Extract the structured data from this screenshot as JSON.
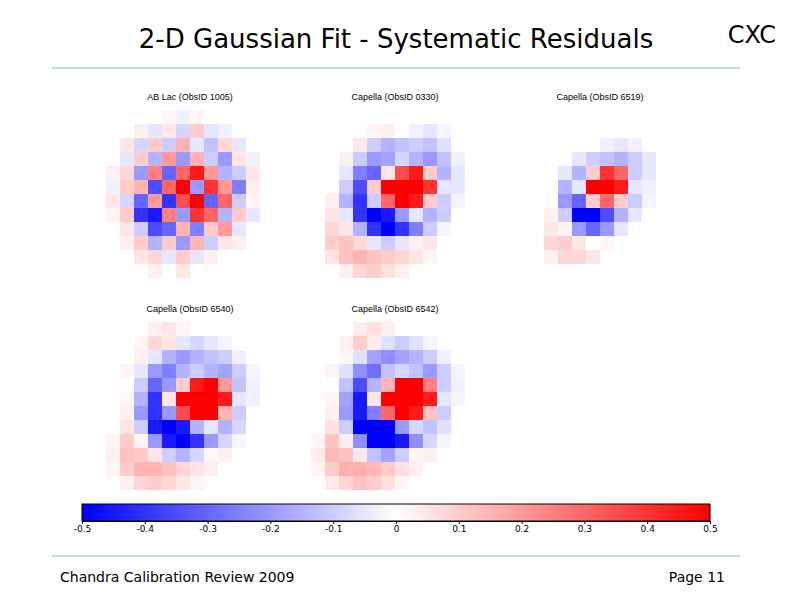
{
  "header": {
    "title": "2-D Gaussian Fit - Systematic Residuals",
    "org": "CXC"
  },
  "footer": {
    "left": "Chandra Calibration Review 2009",
    "right": "Page 11"
  },
  "colorbar": {
    "range": [
      -0.5,
      0.5
    ],
    "ticks": [
      -0.5,
      -0.4,
      -0.3,
      -0.2,
      -0.1,
      0,
      0.1,
      0.2,
      0.3,
      0.4,
      0.5
    ]
  },
  "chart_data": [
    {
      "type": "heatmap",
      "title": "AB Lac (ObsID 1005)",
      "cells": [
        [
          0,
          0,
          0,
          0,
          0.02,
          -0.03,
          0.02,
          0,
          0,
          0,
          0,
          0
        ],
        [
          0,
          0,
          0.03,
          -0.05,
          0.05,
          -0.08,
          0.1,
          -0.05,
          -0.03,
          0,
          0,
          0
        ],
        [
          0,
          0.05,
          -0.08,
          0.1,
          -0.1,
          0.15,
          -0.05,
          -0.12,
          0.08,
          -0.05,
          0,
          0
        ],
        [
          0,
          -0.05,
          0.1,
          -0.15,
          0.2,
          -0.2,
          0.15,
          -0.1,
          -0.2,
          0.05,
          -0.03,
          0
        ],
        [
          0.03,
          0.08,
          -0.2,
          0.25,
          -0.3,
          0.3,
          0.45,
          0.2,
          -0.15,
          -0.1,
          0.05,
          0
        ],
        [
          -0.03,
          0.1,
          0.15,
          -0.35,
          0.3,
          0.5,
          -0.2,
          0.4,
          0.2,
          -0.25,
          0.03,
          0
        ],
        [
          0.05,
          -0.08,
          -0.3,
          0.2,
          -0.4,
          0.35,
          0.5,
          -0.3,
          0.3,
          -0.1,
          0.02,
          0
        ],
        [
          0.02,
          0.1,
          -0.4,
          -0.45,
          0.25,
          -0.2,
          0.4,
          0.3,
          -0.15,
          0.1,
          -0.05,
          0
        ],
        [
          0,
          0.05,
          -0.1,
          -0.35,
          -0.3,
          0.15,
          -0.25,
          0.1,
          0.2,
          -0.05,
          0,
          0
        ],
        [
          0,
          0.03,
          0.1,
          -0.15,
          0.1,
          -0.2,
          0.15,
          -0.1,
          0.05,
          0.03,
          0,
          0
        ],
        [
          0,
          0,
          0.05,
          0.08,
          -0.05,
          0.1,
          -0.05,
          0.03,
          0,
          0,
          0,
          0
        ],
        [
          0,
          0,
          0,
          0.03,
          0,
          0.05,
          0,
          0,
          0,
          0,
          0,
          0
        ]
      ]
    },
    {
      "type": "heatmap",
      "title": "Capella (ObsID 0330)",
      "cells": [
        [
          0,
          0,
          0,
          0,
          0,
          0,
          0,
          0,
          0,
          0,
          0,
          0
        ],
        [
          0,
          0,
          0,
          0,
          0.02,
          0.03,
          0,
          -0.03,
          -0.05,
          -0.02,
          0,
          0
        ],
        [
          0,
          0,
          0,
          0.05,
          -0.1,
          -0.15,
          -0.12,
          -0.1,
          -0.12,
          -0.06,
          0,
          0
        ],
        [
          0,
          0,
          0.03,
          -0.1,
          -0.2,
          -0.18,
          -0.08,
          -0.15,
          -0.2,
          -0.12,
          -0.03,
          0
        ],
        [
          0,
          0,
          -0.05,
          -0.25,
          -0.3,
          0.05,
          0.35,
          0.45,
          0.1,
          -0.15,
          -0.05,
          0
        ],
        [
          0,
          0,
          -0.1,
          -0.35,
          0.1,
          0.5,
          0.5,
          0.5,
          0.4,
          -0.05,
          -0.05,
          0
        ],
        [
          0,
          0.03,
          -0.15,
          -0.4,
          -0.1,
          0.3,
          0.5,
          0.45,
          0.1,
          -0.1,
          -0.02,
          0
        ],
        [
          0,
          0.05,
          -0.05,
          -0.4,
          -0.5,
          -0.45,
          -0.2,
          -0.05,
          -0.15,
          -0.1,
          0,
          0
        ],
        [
          0,
          0.08,
          0.05,
          -0.15,
          -0.4,
          -0.5,
          -0.4,
          -0.25,
          -0.1,
          -0.02,
          0,
          0
        ],
        [
          0,
          0.1,
          0.12,
          0.08,
          -0.05,
          -0.1,
          -0.05,
          0.03,
          0.05,
          0,
          0,
          0
        ],
        [
          0,
          0.05,
          0.12,
          0.15,
          0.12,
          0.1,
          0.08,
          0.05,
          0.02,
          0,
          0,
          0
        ],
        [
          0,
          0,
          0.03,
          0.08,
          0.1,
          0.06,
          0.03,
          0,
          0,
          0,
          0,
          0
        ]
      ]
    },
    {
      "type": "heatmap",
      "title": "Capella (ObsID 6519)",
      "cells": [
        [
          0,
          0,
          0,
          0,
          0,
          0,
          0,
          0,
          0,
          0,
          0,
          0
        ],
        [
          0,
          0,
          0,
          0,
          0,
          0,
          0,
          0,
          0,
          0,
          0,
          0
        ],
        [
          0,
          0,
          0,
          0,
          0,
          0,
          -0.03,
          -0.05,
          -0.03,
          0,
          0,
          0
        ],
        [
          0,
          0,
          0,
          0,
          -0.05,
          -0.1,
          -0.12,
          -0.15,
          -0.1,
          -0.05,
          0,
          0
        ],
        [
          0,
          0,
          0,
          -0.05,
          -0.15,
          0.1,
          0.4,
          0.3,
          -0.1,
          -0.05,
          0,
          0
        ],
        [
          0,
          0,
          0,
          -0.15,
          -0.05,
          0.5,
          0.5,
          0.45,
          -0.05,
          -0.03,
          0,
          0
        ],
        [
          0,
          0,
          0,
          -0.2,
          -0.3,
          0.1,
          0.3,
          0.1,
          -0.1,
          -0.02,
          0,
          0
        ],
        [
          0,
          0,
          0.03,
          -0.1,
          -0.5,
          -0.5,
          -0.35,
          -0.15,
          -0.05,
          0,
          0,
          0
        ],
        [
          0,
          0,
          0.05,
          0.02,
          -0.2,
          -0.3,
          -0.2,
          -0.05,
          0,
          0,
          0,
          0
        ],
        [
          0,
          0,
          0.08,
          0.1,
          0.05,
          0,
          0.02,
          0,
          0,
          0,
          0,
          0
        ],
        [
          0,
          0,
          0.03,
          0.08,
          0.08,
          0.05,
          0,
          0,
          0,
          0,
          0,
          0
        ],
        [
          0,
          0,
          0,
          0,
          0,
          0,
          0,
          0,
          0,
          0,
          0,
          0
        ]
      ]
    },
    {
      "type": "heatmap",
      "title": "Capella (ObsID 6540)",
      "cells": [
        [
          0,
          0,
          0,
          0.03,
          0.05,
          0.02,
          0,
          0,
          0,
          0,
          0,
          0
        ],
        [
          0,
          0,
          0.02,
          0.08,
          0.05,
          -0.05,
          -0.08,
          -0.05,
          -0.02,
          0,
          0,
          0
        ],
        [
          0,
          0,
          0.03,
          -0.05,
          -0.15,
          -0.2,
          -0.15,
          -0.12,
          -0.1,
          -0.03,
          0,
          0
        ],
        [
          0,
          0.02,
          -0.05,
          -0.2,
          -0.25,
          -0.15,
          -0.1,
          -0.15,
          -0.18,
          -0.1,
          -0.02,
          0
        ],
        [
          0,
          0,
          -0.1,
          -0.3,
          -0.2,
          0.1,
          0.45,
          0.5,
          0.2,
          -0.12,
          -0.03,
          0
        ],
        [
          0,
          0.02,
          -0.15,
          -0.4,
          0.05,
          0.5,
          0.5,
          0.5,
          0.45,
          -0.05,
          -0.03,
          0
        ],
        [
          0,
          0.03,
          -0.2,
          -0.4,
          -0.2,
          0.35,
          0.5,
          0.5,
          0.15,
          -0.1,
          0,
          0
        ],
        [
          0,
          0.05,
          -0.1,
          -0.45,
          -0.5,
          -0.45,
          -0.15,
          -0.05,
          -0.15,
          -0.08,
          0,
          0
        ],
        [
          0.02,
          0.1,
          0.02,
          -0.2,
          -0.45,
          -0.5,
          -0.4,
          -0.2,
          -0.08,
          -0.02,
          0,
          0
        ],
        [
          0.03,
          0.12,
          0.1,
          0.05,
          -0.1,
          -0.15,
          -0.08,
          0.02,
          0.03,
          0,
          0,
          0
        ],
        [
          0.02,
          0.1,
          0.15,
          0.15,
          0.12,
          0.08,
          0.05,
          0.03,
          0,
          0,
          0,
          0
        ],
        [
          0,
          0.03,
          0.08,
          0.1,
          0.08,
          0.05,
          0.02,
          0,
          0,
          0,
          0,
          0
        ]
      ]
    },
    {
      "type": "heatmap",
      "title": "Capella (ObsID 6542)",
      "cells": [
        [
          0,
          0,
          0,
          0.04,
          0.06,
          0.03,
          0,
          0,
          0,
          0,
          0,
          0
        ],
        [
          0,
          0,
          0.03,
          0.1,
          0.04,
          -0.06,
          -0.1,
          -0.06,
          -0.02,
          0,
          0,
          0
        ],
        [
          0,
          0,
          0.02,
          -0.06,
          -0.18,
          -0.22,
          -0.18,
          -0.15,
          -0.1,
          -0.03,
          0,
          0
        ],
        [
          0,
          0.02,
          -0.06,
          -0.22,
          -0.28,
          -0.12,
          -0.08,
          -0.12,
          -0.2,
          -0.1,
          -0.02,
          0
        ],
        [
          0,
          0,
          -0.12,
          -0.35,
          -0.15,
          0.15,
          0.5,
          0.5,
          0.25,
          -0.1,
          -0.03,
          0
        ],
        [
          0,
          0.02,
          -0.18,
          -0.45,
          0.05,
          0.5,
          0.5,
          0.5,
          0.45,
          -0.05,
          -0.02,
          0
        ],
        [
          0,
          0.03,
          -0.2,
          -0.45,
          -0.25,
          0.3,
          0.5,
          0.45,
          0.12,
          -0.1,
          0,
          0
        ],
        [
          0,
          0.06,
          -0.1,
          -0.5,
          -0.5,
          -0.5,
          -0.2,
          -0.08,
          -0.12,
          -0.06,
          0,
          0
        ],
        [
          0.02,
          0.12,
          0.03,
          -0.22,
          -0.5,
          -0.5,
          -0.45,
          -0.22,
          -0.08,
          -0.02,
          0,
          0
        ],
        [
          0.04,
          0.14,
          0.12,
          0.05,
          -0.12,
          -0.18,
          -0.1,
          0.02,
          0.03,
          0,
          0,
          0
        ],
        [
          0.02,
          0.1,
          0.16,
          0.16,
          0.14,
          0.1,
          0.06,
          0.03,
          0,
          0,
          0,
          0
        ],
        [
          0,
          0.04,
          0.08,
          0.12,
          0.1,
          0.06,
          0.02,
          0,
          0,
          0,
          0,
          0
        ]
      ]
    }
  ]
}
